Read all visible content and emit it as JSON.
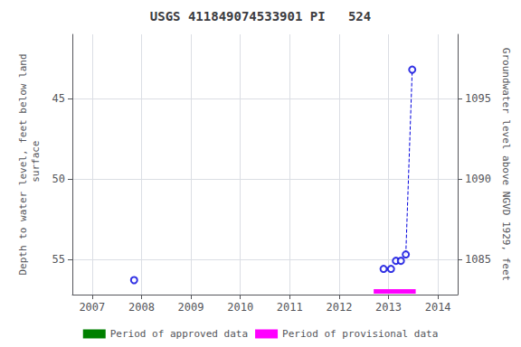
{
  "chart_data": {
    "type": "scatter",
    "title": "USGS 411849074533901 PI   524",
    "y_label": "Depth to water level, feet below land\n surface",
    "y2_label": "Groundwater level above NGVD 1929, feet",
    "xlim": [
      2006.6,
      2014.4
    ],
    "xticks": [
      2007,
      2008,
      2009,
      2010,
      2011,
      2012,
      2013,
      2014
    ],
    "ylim": [
      57.2,
      41.0
    ],
    "yticks": [
      45,
      50,
      55
    ],
    "y2lim": [
      1082.8,
      1099.0
    ],
    "y2ticks": [
      1085,
      1090,
      1095
    ],
    "grid": true,
    "legend": "bottom",
    "series": [
      {
        "type": "scatter",
        "marker": "circle",
        "color": "#0000dd",
        "x": [
          2007.85,
          2012.9,
          2013.05,
          2013.15,
          2013.25,
          2013.35,
          2013.48
        ],
        "values": [
          56.3,
          55.6,
          55.6,
          55.1,
          55.1,
          54.7,
          43.2
        ]
      },
      {
        "type": "line",
        "line_style": "dashed",
        "color": "#0000dd",
        "x": [
          2013.35,
          2013.48
        ],
        "values": [
          54.7,
          43.2
        ]
      },
      {
        "name": "Period of approved data",
        "type": "line",
        "color": "#008000",
        "x": [],
        "values": []
      },
      {
        "name": "Period of provisional data",
        "type": "line",
        "color": "#ff00ff",
        "x": [
          2012.7,
          2013.55
        ],
        "values": [
          57.0,
          57.0
        ]
      }
    ]
  }
}
